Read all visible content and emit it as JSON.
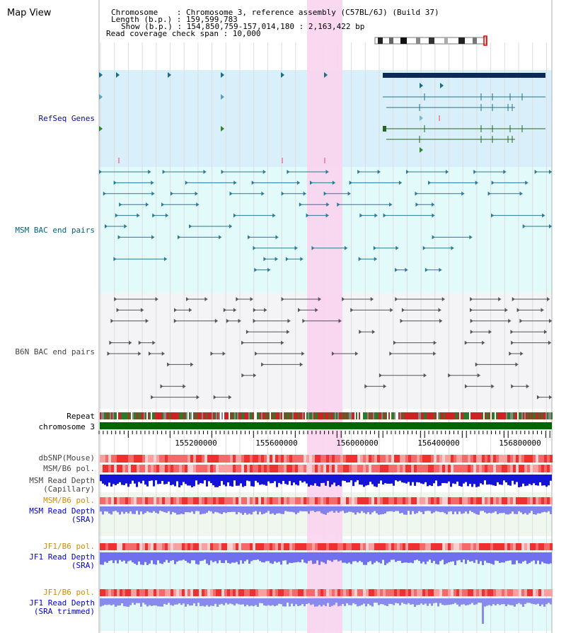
{
  "title": "Map View",
  "info": {
    "chromosome": "Chromosome    : Chromosome 3, reference assembly (C57BL/6J) (Build 37)",
    "length": "Length (b.p.) : 159,599,783",
    "show": "Show (b.p.) : 154,850,759-157,014,180 : 2,163,422 bp",
    "coverage": "Read coverage check span : 10,000"
  },
  "tracks": {
    "refseq": "RefSeq Genes",
    "msm_bac": "MSM BAC end pairs",
    "b6n_bac": "B6N BAC end pairs",
    "repeat": "Repeat",
    "chromosome": "chromosome 3",
    "dbsnp": "dbSNP(Mouse)",
    "msm_b6_pol": "MSM/B6 pol.",
    "msm_depth_cap_1": "MSM Read Depth",
    "msm_depth_cap_2": "(Capillary)",
    "msm_b6_pol_2": "MSM/B6 pol.",
    "msm_depth_sra_1": "MSM Read Depth",
    "msm_depth_sra_2": "(SRA)",
    "jf1_b6_pol_1": "JF1/B6 pol.",
    "jf1_depth_sra_1": "JF1 Read Depth",
    "jf1_depth_sra_2": "(SRA)",
    "jf1_b6_pol_2": "JF1/B6 pol.",
    "jf1_depth_trim_1": "JF1 Read Depth",
    "jf1_depth_trim_2": "(SRA trimmed)"
  },
  "axis": {
    "ticks": [
      "155200000",
      "155600000",
      "156000000",
      "156400000",
      "156800000"
    ]
  },
  "colors": {
    "refseq_label": "#0a0a9e",
    "msm_label": "#006677",
    "gray_label": "#444444",
    "orange_label": "#d48a00",
    "blue_label": "#0000cc",
    "highlight": "#f9d4ee",
    "chromosome_bar": "#006600"
  }
}
